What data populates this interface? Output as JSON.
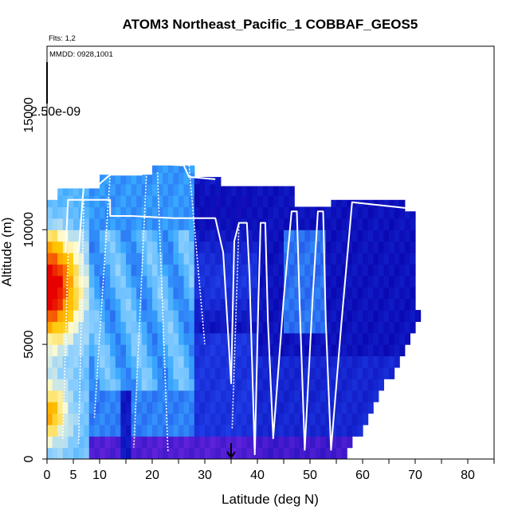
{
  "chart_data": {
    "type": "heatmap",
    "title": "ATOM3 Northeast_Pacific_1 COBBAF_GEOS5",
    "subtitle_flights": "Flts: 1,2",
    "subtitle_dates": "MMDD: 0928,1001",
    "colorbar_label": "2.50e-09",
    "xlabel": "Latitude (deg N)",
    "ylabel": "Altitude (m)",
    "xlim": [
      0,
      85
    ],
    "ylim": [
      0,
      18000
    ],
    "x_ticks": [
      0,
      5,
      10,
      20,
      30,
      40,
      50,
      60,
      70,
      80
    ],
    "y_ticks": [
      0,
      5000,
      10000,
      15000
    ],
    "minor_x_ticks": [
      15,
      25,
      35,
      45,
      55,
      65,
      75,
      85
    ],
    "marker_latitude": 35,
    "grid": false,
    "legend": "none",
    "colors": {
      "deep_blue": "#0a0ab4",
      "navy": "#00008f",
      "violet": "#7a2ae6",
      "sky": "#38a8ff",
      "light_sky": "#8fd0ff",
      "cream": "#fffbd0",
      "orange": "#ff9a00",
      "red": "#e60000",
      "track": "#ffffff"
    },
    "flight_track": [
      [
        3.5,
        9000
      ],
      [
        4.0,
        11300
      ],
      [
        8.0,
        11300
      ],
      [
        12.0,
        11300
      ],
      [
        12.0,
        10600
      ],
      [
        16.0,
        10600
      ],
      [
        24.0,
        10500
      ],
      [
        32.0,
        10500
      ],
      [
        33.5,
        9000
      ],
      [
        35.0,
        3300
      ],
      [
        35.6,
        9500
      ],
      [
        36.5,
        10300
      ],
      [
        38.0,
        10300
      ],
      [
        38.5,
        8000
      ],
      [
        39.5,
        200
      ],
      [
        40.2,
        7000
      ],
      [
        40.6,
        10300
      ],
      [
        41.5,
        10300
      ],
      [
        42.0,
        6000
      ],
      [
        43.0,
        900
      ],
      [
        45.0,
        7000
      ],
      [
        46.5,
        10800
      ],
      [
        47.5,
        10800
      ],
      [
        48.0,
        7000
      ],
      [
        49.0,
        400
      ],
      [
        50.5,
        7000
      ],
      [
        51.5,
        10800
      ],
      [
        52.5,
        10800
      ],
      [
        53.0,
        6000
      ],
      [
        54.0,
        400
      ],
      [
        56.0,
        6000
      ],
      [
        58.0,
        11200
      ],
      [
        70.0,
        10900
      ],
      [
        71.0,
        10800
      ],
      [
        71.3,
        9000
      ]
    ],
    "flight_track_2": [
      [
        6.0,
        9000
      ],
      [
        7.0,
        12000
      ],
      [
        10.0,
        12000
      ],
      [
        12.0,
        12400
      ],
      [
        18.0,
        12400
      ],
      [
        19.0,
        12900
      ],
      [
        26.0,
        12800
      ],
      [
        27.0,
        12300
      ],
      [
        32.0,
        12200
      ]
    ],
    "vertical_profiles": [
      [
        [
          4,
          9000
        ],
        [
          3,
          800
        ]
      ],
      [
        [
          7,
          11300
        ],
        [
          6,
          600
        ]
      ],
      [
        [
          12,
          12400
        ],
        [
          9,
          1800
        ]
      ],
      [
        [
          19,
          12900
        ],
        [
          16.5,
          500
        ]
      ],
      [
        [
          21,
          12500
        ],
        [
          23,
          300
        ]
      ],
      [
        [
          27,
          12800
        ],
        [
          30,
          5000
        ]
      ],
      [
        [
          36.5,
          10300
        ],
        [
          35.2,
          1300
        ]
      ]
    ]
  }
}
